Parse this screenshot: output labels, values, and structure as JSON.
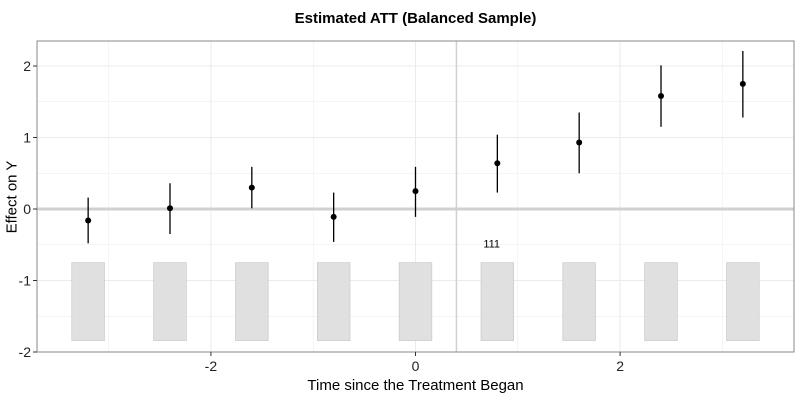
{
  "chart_data": {
    "type": "scatter",
    "title": "Estimated ATT (Balanced Sample)",
    "xlabel": "Time since the Treatment Began",
    "ylabel": "Effect on Y",
    "xlim": [
      -3.7,
      3.7
    ],
    "ylim": [
      -2.0,
      2.35
    ],
    "x_ticks": [
      -2,
      0,
      2
    ],
    "y_ticks": [
      -2,
      -1,
      0,
      1,
      2
    ],
    "grid": true,
    "reference_line_x": 0.4,
    "reference_line_y": 0,
    "points": [
      {
        "x": -3.2,
        "y": -0.16,
        "lower": -0.48,
        "upper": 0.16
      },
      {
        "x": -2.4,
        "y": 0.01,
        "lower": -0.35,
        "upper": 0.36
      },
      {
        "x": -1.6,
        "y": 0.3,
        "lower": 0.01,
        "upper": 0.59
      },
      {
        "x": -0.8,
        "y": -0.11,
        "lower": -0.46,
        "upper": 0.23
      },
      {
        "x": 0.0,
        "y": 0.25,
        "lower": -0.11,
        "upper": 0.59
      },
      {
        "x": 0.8,
        "y": 0.64,
        "lower": 0.23,
        "upper": 1.04
      },
      {
        "x": 1.6,
        "y": 0.93,
        "lower": 0.5,
        "upper": 1.35
      },
      {
        "x": 2.4,
        "y": 1.58,
        "lower": 1.15,
        "upper": 2.01
      },
      {
        "x": 3.2,
        "y": 1.75,
        "lower": 1.28,
        "upper": 2.21
      }
    ],
    "count_bars": {
      "x": [
        -3.2,
        -2.4,
        -1.6,
        -0.8,
        0.0,
        0.8,
        1.6,
        2.4,
        3.2
      ],
      "bottom": -1.84,
      "top": -0.75,
      "width": 0.32
    },
    "annotation": {
      "text": "111",
      "x": 0.8,
      "y": -0.48
    },
    "colors": {
      "point": "#000000",
      "count_bar_fill": "#e0e0e0",
      "count_bar_stroke": "#c4c4c4",
      "grid": "#ebebeb",
      "reference_line": "#d0d0d0",
      "panel_border": "#888888"
    }
  }
}
